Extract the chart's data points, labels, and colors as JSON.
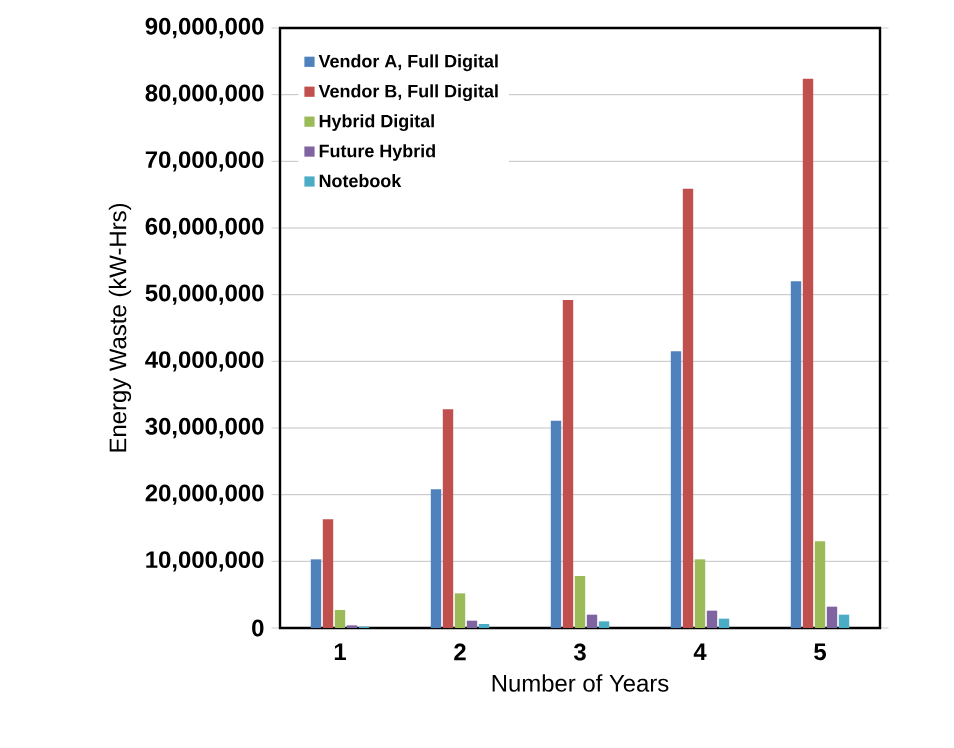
{
  "chart_data": {
    "type": "bar",
    "xlabel": "Number of Years",
    "ylabel": "Energy Waste (kW-Hrs)",
    "categories": [
      "1",
      "2",
      "3",
      "4",
      "5"
    ],
    "series": [
      {
        "name": "Vendor A, Full Digital",
        "color": "#4f81bd",
        "values": [
          10300000,
          20800000,
          31100000,
          41500000,
          52000000
        ]
      },
      {
        "name": "Vendor B, Full Digital",
        "color": "#c0504d",
        "values": [
          16300000,
          32800000,
          49200000,
          65900000,
          82400000
        ]
      },
      {
        "name": "Hybrid Digital",
        "color": "#9bbb59",
        "values": [
          2700000,
          5200000,
          7800000,
          10300000,
          13000000
        ]
      },
      {
        "name": "Future Hybrid",
        "color": "#8064a2",
        "values": [
          400000,
          1100000,
          2000000,
          2600000,
          3200000
        ]
      },
      {
        "name": "Notebook",
        "color": "#4bacc6",
        "values": [
          200000,
          600000,
          1000000,
          1400000,
          2000000
        ]
      }
    ],
    "ylim": [
      0,
      90000000
    ],
    "yticks": [
      0,
      {
        "value": 10000000,
        "label": "10,000,000"
      },
      {
        "value": 20000000,
        "label": "20,000,000"
      },
      {
        "value": 30000000,
        "label": "30,000,000"
      },
      {
        "value": 40000000,
        "label": "40,000,000"
      },
      {
        "value": 50000000,
        "label": "50,000,000"
      },
      {
        "value": 60000000,
        "label": "60,000,000"
      },
      {
        "value": 70000000,
        "label": "70,000,000"
      },
      {
        "value": 80000000,
        "label": "80,000,000"
      },
      {
        "value": 90000000,
        "label": "90,000,000"
      }
    ],
    "grid": "y",
    "legend": "top left"
  }
}
